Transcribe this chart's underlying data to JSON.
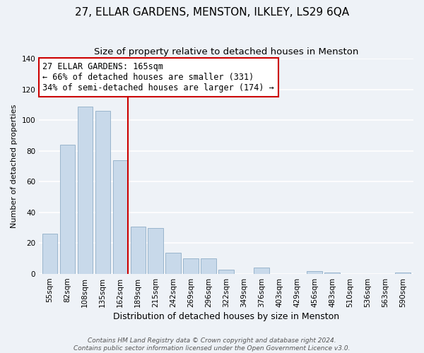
{
  "title": "27, ELLAR GARDENS, MENSTON, ILKLEY, LS29 6QA",
  "subtitle": "Size of property relative to detached houses in Menston",
  "xlabel": "Distribution of detached houses by size in Menston",
  "ylabel": "Number of detached properties",
  "bar_labels": [
    "55sqm",
    "82sqm",
    "108sqm",
    "135sqm",
    "162sqm",
    "189sqm",
    "215sqm",
    "242sqm",
    "269sqm",
    "296sqm",
    "322sqm",
    "349sqm",
    "376sqm",
    "403sqm",
    "429sqm",
    "456sqm",
    "483sqm",
    "510sqm",
    "536sqm",
    "563sqm",
    "590sqm"
  ],
  "bar_values": [
    26,
    84,
    109,
    106,
    74,
    31,
    30,
    14,
    10,
    10,
    3,
    0,
    4,
    0,
    0,
    2,
    1,
    0,
    0,
    0,
    1
  ],
  "bar_color": "#c8d9ea",
  "bar_edge_color": "#9ab5cc",
  "marker_line_color": "#cc0000",
  "annotation_text": "27 ELLAR GARDENS: 165sqm\n← 66% of detached houses are smaller (331)\n34% of semi-detached houses are larger (174) →",
  "annotation_box_color": "white",
  "annotation_box_edge_color": "#cc0000",
  "ylim": [
    0,
    140
  ],
  "yticks": [
    0,
    20,
    40,
    60,
    80,
    100,
    120,
    140
  ],
  "footer_text": "Contains HM Land Registry data © Crown copyright and database right 2024.\nContains public sector information licensed under the Open Government Licence v3.0.",
  "background_color": "#eef2f7",
  "grid_color": "white",
  "title_fontsize": 11,
  "subtitle_fontsize": 9.5,
  "xlabel_fontsize": 9,
  "ylabel_fontsize": 8,
  "tick_fontsize": 7.5,
  "footer_fontsize": 6.5,
  "annotation_fontsize": 8.5
}
